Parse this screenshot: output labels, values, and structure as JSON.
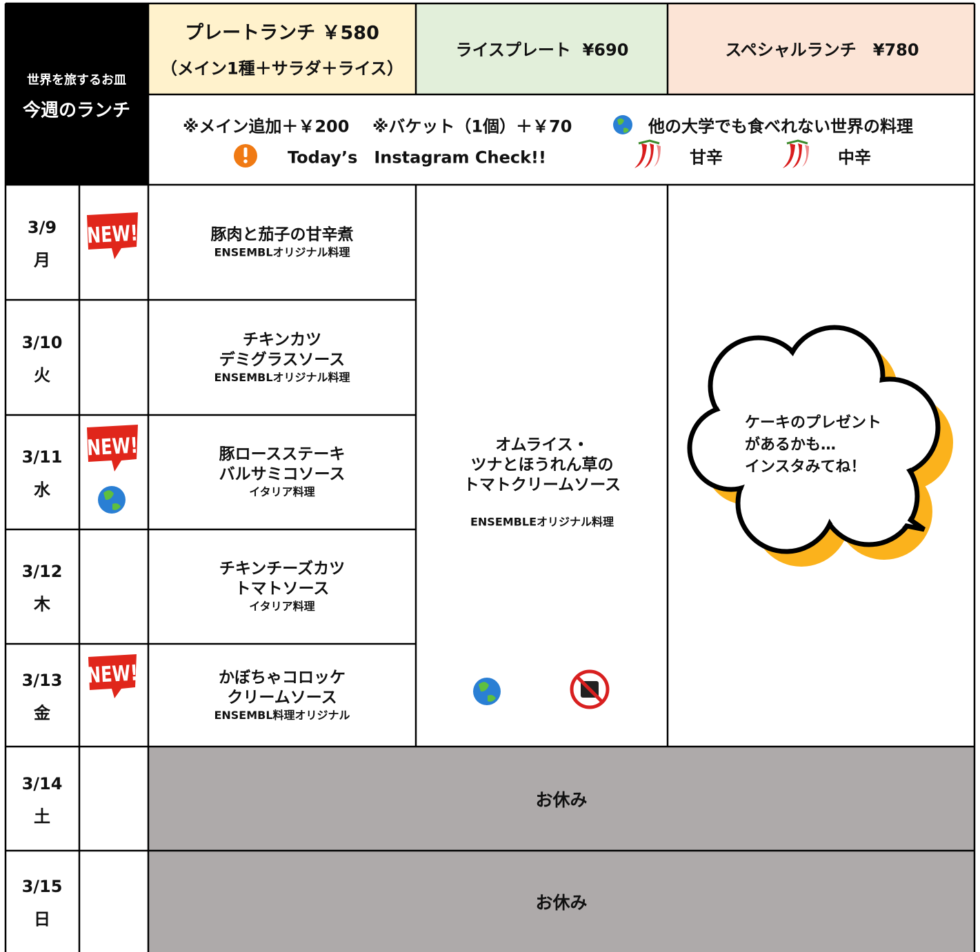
{
  "header": {
    "subtitle": "世界を旅するお皿",
    "title": "今週のランチ",
    "menus": [
      {
        "name": "プレートランチ ￥580",
        "detail": "（メイン1種＋サラダ＋ライス）"
      },
      {
        "name": "ライスプレート  ¥690"
      },
      {
        "name": "スペシャルランチ　¥780"
      }
    ],
    "notes": [
      "※メイン追加＋￥200",
      "※バケット（1個）＋￥70",
      "他の大学でも食べれない世界の料理",
      "Today’s　Instagram Check!!",
      "甘辛",
      "中辛"
    ]
  },
  "days": [
    {
      "date": "3/9",
      "weekday": "月",
      "badge": "NEW!",
      "dish": [
        "豚肉と茄子の甘辛煮"
      ],
      "origin": "ENSEMBLオリジナル料理"
    },
    {
      "date": "3/10",
      "weekday": "火",
      "dish": [
        "チキンカツ",
        "デミグラスソース"
      ],
      "origin": "ENSEMBLオリジナル料理"
    },
    {
      "date": "3/11",
      "weekday": "水",
      "badge": "NEW!",
      "dish": [
        "豚ロースステーキ",
        "バルサミコソース"
      ],
      "origin": "イタリア料理"
    },
    {
      "date": "3/12",
      "weekday": "木",
      "dish": [
        "チキンチーズカツ",
        "トマトソース"
      ],
      "origin": "イタリア料理"
    },
    {
      "date": "3/13",
      "weekday": "金",
      "badge": "NEW!",
      "dish": [
        "かぼちゃコロッケ",
        "クリームソース"
      ],
      "origin": "ENSEMBL料理オリジナル"
    },
    {
      "date": "3/14",
      "weekday": "土",
      "closed": "お休み"
    },
    {
      "date": "3/15",
      "weekday": "日",
      "closed": "お休み"
    }
  ],
  "rice_plate": {
    "dish": [
      "オムライス・",
      "ツナとほうれん草の",
      "トマトクリームソース"
    ],
    "origin": "ENSEMBLEオリジナル料理"
  },
  "special": [
    "ケーキのプレゼント",
    "があるかも…",
    "インスタみてね！"
  ]
}
